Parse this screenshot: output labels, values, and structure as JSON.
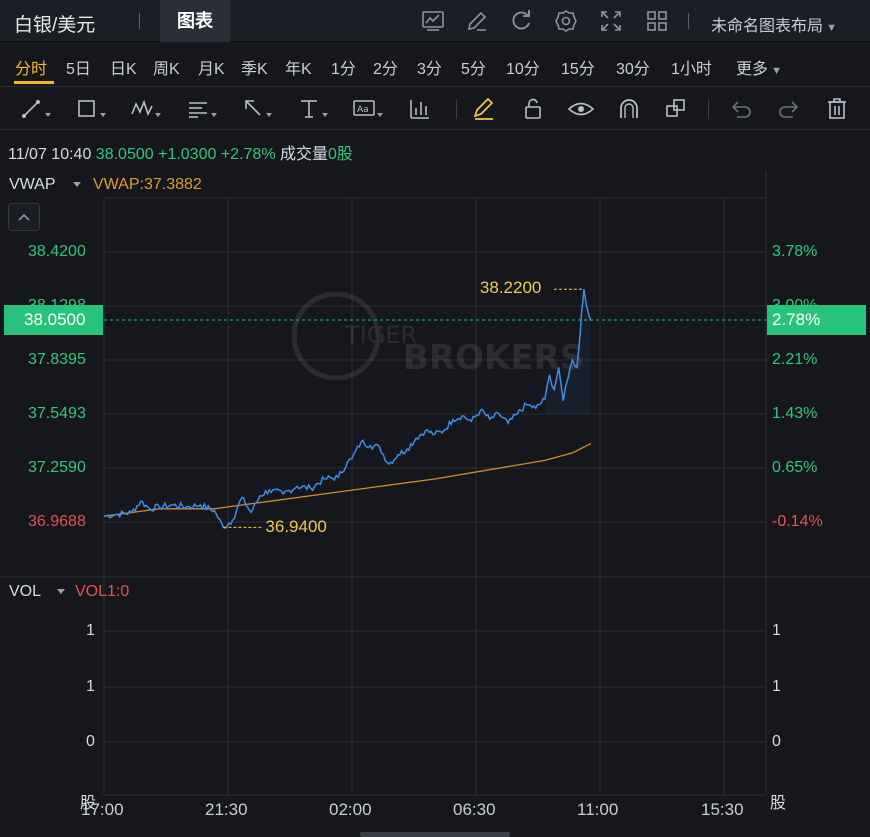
{
  "header": {
    "symbol": "白银/美元",
    "tab": "图表",
    "layout_name": "未命名图表布局",
    "icons": [
      "chart-settings-icon",
      "edit-icon",
      "refresh-icon",
      "gear-icon",
      "fullscreen-icon",
      "layout-grid-icon"
    ]
  },
  "periods": [
    "分时",
    "5日",
    "日K",
    "周K",
    "月K",
    "季K",
    "年K",
    "1分",
    "2分",
    "3分",
    "5分",
    "10分",
    "15分",
    "30分",
    "1小时",
    "更多"
  ],
  "active_period": "分时",
  "tools": [
    "trend-line-icon",
    "rectangle-icon",
    "wave-pattern-icon",
    "fibonacci-icon",
    "arrow-icon",
    "text-icon",
    "note-icon",
    "price-range-icon",
    "brush-icon",
    "lock-icon",
    "eye-icon",
    "magnet-icon",
    "layers-icon",
    "undo-icon",
    "redo-icon",
    "delete-icon"
  ],
  "info": {
    "datetime": "11/07 10:40",
    "price": "38.0500",
    "change": "+1.0300",
    "change_pct": "+2.78%",
    "volume_label": "成交量",
    "volume": "0股"
  },
  "indicator": {
    "name": "VWAP",
    "value": "VWAP:37.3882"
  },
  "volume_panel": {
    "name": "VOL",
    "value": "VOL1:0",
    "unit": "股"
  },
  "current_price_tag": "38.0500",
  "current_pct_tag": "2.78%",
  "colors": {
    "up": "#2fc879",
    "down": "#e6504f",
    "price_line": "#3b8ee8",
    "vwap_line": "#d38a2a",
    "highlight": "#f2c94c",
    "tag": "#27c27c"
  },
  "chart_data": {
    "type": "line",
    "title": "",
    "x_ticks": [
      "17:00",
      "21:30",
      "02:00",
      "06:30",
      "11:00",
      "15:30"
    ],
    "y_ticks_price": [
      "38.4200",
      "38.1298",
      "37.8395",
      "37.5493",
      "37.2590",
      "36.9688"
    ],
    "y_ticks_pct": [
      "3.78%",
      "3.00%",
      "2.21%",
      "1.43%",
      "0.65%",
      "-0.14%"
    ],
    "ylim": [
      36.88,
      38.52
    ],
    "prev_close": 37.02,
    "high": {
      "label": "38.2200",
      "value": 38.22,
      "time": "10:25"
    },
    "low": {
      "label": "36.9400",
      "value": 36.94,
      "time": "21:20"
    },
    "vol_ticks_left": [
      "1",
      "1",
      "0"
    ],
    "vol_ticks_right": [
      "1",
      "1",
      "0"
    ],
    "series": [
      {
        "name": "price",
        "points": [
          [
            "17:00",
            37.0
          ],
          [
            "17:30",
            37.01
          ],
          [
            "18:00",
            37.02
          ],
          [
            "18:20",
            37.08
          ],
          [
            "18:40",
            37.04
          ],
          [
            "19:00",
            37.05
          ],
          [
            "19:30",
            37.06
          ],
          [
            "20:00",
            37.05
          ],
          [
            "20:30",
            37.06
          ],
          [
            "21:00",
            37.03
          ],
          [
            "21:20",
            36.94
          ],
          [
            "21:40",
            36.98
          ],
          [
            "22:00",
            37.1
          ],
          [
            "22:20",
            37.02
          ],
          [
            "22:40",
            37.11
          ],
          [
            "23:00",
            37.14
          ],
          [
            "23:30",
            37.12
          ],
          [
            "00:00",
            37.16
          ],
          [
            "00:30",
            37.15
          ],
          [
            "01:00",
            37.2
          ],
          [
            "01:30",
            37.21
          ],
          [
            "01:50",
            37.29
          ],
          [
            "02:00",
            37.31
          ],
          [
            "02:20",
            37.4
          ],
          [
            "02:40",
            37.38
          ],
          [
            "03:00",
            37.37
          ],
          [
            "03:20",
            37.28
          ],
          [
            "03:40",
            37.33
          ],
          [
            "04:00",
            37.36
          ],
          [
            "04:20",
            37.42
          ],
          [
            "04:40",
            37.46
          ],
          [
            "05:00",
            37.44
          ],
          [
            "05:20",
            37.46
          ],
          [
            "05:40",
            37.52
          ],
          [
            "06:00",
            37.54
          ],
          [
            "06:20",
            37.51
          ],
          [
            "06:40",
            37.57
          ],
          [
            "07:00",
            37.52
          ],
          [
            "07:20",
            37.55
          ],
          [
            "07:40",
            37.5
          ],
          [
            "08:00",
            37.55
          ],
          [
            "08:20",
            37.6
          ],
          [
            "08:40",
            37.58
          ],
          [
            "09:00",
            37.63
          ],
          [
            "09:10",
            37.76
          ],
          [
            "09:20",
            37.68
          ],
          [
            "09:30",
            37.8
          ],
          [
            "09:40",
            37.62
          ],
          [
            "09:50",
            37.74
          ],
          [
            "10:00",
            37.84
          ],
          [
            "10:10",
            37.8
          ],
          [
            "10:15",
            37.93
          ],
          [
            "10:20",
            38.1
          ],
          [
            "10:25",
            38.22
          ],
          [
            "10:30",
            38.14
          ],
          [
            "10:40",
            38.05
          ]
        ]
      },
      {
        "name": "VWAP",
        "points": [
          [
            "17:00",
            37.0
          ],
          [
            "19:00",
            37.04
          ],
          [
            "21:00",
            37.04
          ],
          [
            "22:00",
            37.06
          ],
          [
            "23:00",
            37.08
          ],
          [
            "01:00",
            37.12
          ],
          [
            "03:00",
            37.16
          ],
          [
            "05:00",
            37.2
          ],
          [
            "07:00",
            37.25
          ],
          [
            "09:00",
            37.3
          ],
          [
            "10:00",
            37.34
          ],
          [
            "10:40",
            37.39
          ]
        ]
      }
    ]
  }
}
